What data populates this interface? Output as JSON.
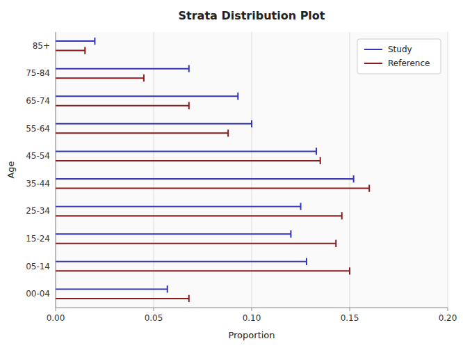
{
  "chart_data": {
    "type": "bar",
    "orientation": "horizontal",
    "title": "Strata Distribution Plot",
    "x_label": "Proportion",
    "y_label": "Age",
    "categories": [
      "85+",
      "75-84",
      "65-74",
      "55-64",
      "45-54",
      "35-44",
      "25-34",
      "15-24",
      "05-14",
      "00-04"
    ],
    "series": [
      {
        "name": "Study",
        "color": "#3333bb",
        "values": [
          0.02,
          0.068,
          0.093,
          0.1,
          0.133,
          0.152,
          0.125,
          0.12,
          0.128,
          0.057
        ]
      },
      {
        "name": "Reference",
        "color": "#8b1a1a",
        "values": [
          0.015,
          0.045,
          0.068,
          0.088,
          0.135,
          0.16,
          0.146,
          0.143,
          0.15,
          0.068
        ]
      }
    ],
    "xlim": [
      0.0,
      0.2
    ],
    "xticks": [
      {
        "value": 0.0,
        "label": "0.00"
      },
      {
        "value": 0.05,
        "label": "0.05"
      },
      {
        "value": 0.1,
        "label": "0.10"
      },
      {
        "value": 0.15,
        "label": "0.15"
      },
      {
        "value": 0.2,
        "label": "0.20"
      }
    ],
    "grid": true,
    "legend": "upper right"
  }
}
